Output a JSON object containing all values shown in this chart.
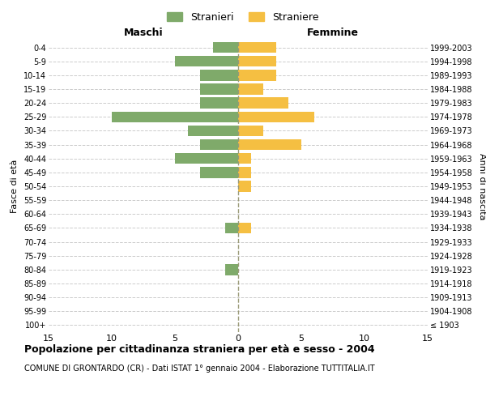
{
  "age_groups": [
    "100+",
    "95-99",
    "90-94",
    "85-89",
    "80-84",
    "75-79",
    "70-74",
    "65-69",
    "60-64",
    "55-59",
    "50-54",
    "45-49",
    "40-44",
    "35-39",
    "30-34",
    "25-29",
    "20-24",
    "15-19",
    "10-14",
    "5-9",
    "0-4"
  ],
  "birth_years": [
    "≤ 1903",
    "1904-1908",
    "1909-1913",
    "1914-1918",
    "1919-1923",
    "1924-1928",
    "1929-1933",
    "1934-1938",
    "1939-1943",
    "1944-1948",
    "1949-1953",
    "1954-1958",
    "1959-1963",
    "1964-1968",
    "1969-1973",
    "1974-1978",
    "1979-1983",
    "1984-1988",
    "1989-1993",
    "1994-1998",
    "1999-2003"
  ],
  "males": [
    0,
    0,
    0,
    0,
    1,
    0,
    0,
    1,
    0,
    0,
    0,
    3,
    5,
    3,
    4,
    10,
    3,
    3,
    3,
    5,
    2
  ],
  "females": [
    0,
    0,
    0,
    0,
    0,
    0,
    0,
    1,
    0,
    0,
    1,
    1,
    1,
    5,
    2,
    6,
    4,
    2,
    3,
    3,
    3
  ],
  "male_color": "#7faa6a",
  "female_color": "#f5bf42",
  "title": "Popolazione per cittadinanza straniera per età e sesso - 2004",
  "subtitle": "COMUNE DI GRONTARDO (CR) - Dati ISTAT 1° gennaio 2004 - Elaborazione TUTTITALIA.IT",
  "xlabel_left": "Maschi",
  "xlabel_right": "Femmine",
  "ylabel_left": "Fasce di età",
  "ylabel_right": "Anni di nascita",
  "xlim": 15,
  "legend_stranieri": "Stranieri",
  "legend_straniere": "Straniere",
  "background_color": "#ffffff",
  "grid_color": "#cccccc"
}
